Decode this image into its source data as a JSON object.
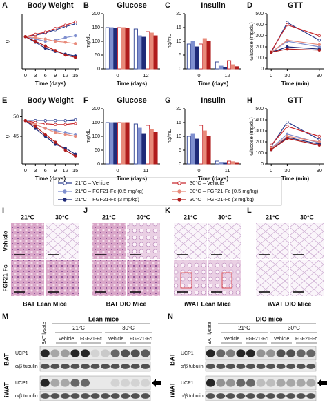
{
  "chart_data": [
    {
      "panel": "A",
      "type": "line",
      "title": "Body Weight",
      "x_label": "Time (days)",
      "y_label": "g",
      "x": [
        0,
        3,
        6,
        9,
        12,
        15
      ],
      "xlim": [
        -1,
        16
      ],
      "xticks": [
        0,
        3,
        6,
        9,
        12,
        15
      ],
      "ylim": [
        28,
        40
      ],
      "yticks": [],
      "series": [
        {
          "name": "21°C – Vehicle",
          "color": "#2b3d8f",
          "fill": "#ffffff",
          "values": [
            35,
            35.3,
            35.8,
            36.5,
            37.2,
            37.8
          ]
        },
        {
          "name": "21°C – FGF21-Fc (0.5 mg/kg)",
          "color": "#7f8fcf",
          "fill": "#7f8fcf",
          "values": [
            35,
            34.5,
            34,
            34.2,
            34.8,
            35.2
          ]
        },
        {
          "name": "21°C – FGF21-Fc (3 mg/kg)",
          "color": "#1f2a78",
          "fill": "#1f2a78",
          "values": [
            35,
            33.8,
            32.5,
            31.8,
            31.2,
            30.8
          ]
        },
        {
          "name": "30°C – Vehicle",
          "color": "#c8282d",
          "fill": "#ffffff",
          "values": [
            35,
            35.5,
            36,
            36.8,
            37.5,
            38.2
          ]
        },
        {
          "name": "30°C – FGF21-Fc (0.5 mg/kg)",
          "color": "#e88a7a",
          "fill": "#e88a7a",
          "values": [
            35,
            34.8,
            34.5,
            34,
            33.8,
            33.5
          ]
        },
        {
          "name": "30°C – FGF21-Fc (3 mg/kg)",
          "color": "#b01c1c",
          "fill": "#b01c1c",
          "values": [
            35,
            34,
            33,
            32,
            31,
            30.5
          ]
        }
      ]
    },
    {
      "panel": "B",
      "type": "bar",
      "title": "Glucose",
      "x_label": "Time (days)",
      "y_label": "mg/dL",
      "categories": [
        "0",
        "12"
      ],
      "ylim": [
        0,
        200
      ],
      "yticks": [
        0,
        50,
        100,
        150,
        200
      ],
      "series": [
        {
          "color": "#2b3d8f",
          "fill": "#ffffff",
          "values": [
            150,
            145
          ]
        },
        {
          "color": "#7f8fcf",
          "fill": "#7f8fcf",
          "values": [
            150,
            120
          ]
        },
        {
          "color": "#1f2a78",
          "fill": "#1f2a78",
          "values": [
            148,
            115
          ]
        },
        {
          "color": "#c8282d",
          "fill": "#ffffff",
          "values": [
            150,
            135
          ]
        },
        {
          "color": "#e88a7a",
          "fill": "#e88a7a",
          "values": [
            150,
            130
          ]
        },
        {
          "color": "#b01c1c",
          "fill": "#b01c1c",
          "values": [
            148,
            120
          ]
        }
      ]
    },
    {
      "panel": "C",
      "type": "bar",
      "title": "Insulin",
      "x_label": "Time (days)",
      "y_label": "ng/mL",
      "categories": [
        "0",
        "12"
      ],
      "ylim": [
        0,
        20
      ],
      "yticks": [
        0,
        5,
        10,
        15,
        20
      ],
      "series": [
        {
          "color": "#2b3d8f",
          "fill": "#ffffff",
          "values": [
            9,
            2.5
          ]
        },
        {
          "color": "#7f8fcf",
          "fill": "#7f8fcf",
          "values": [
            10,
            1
          ]
        },
        {
          "color": "#1f2a78",
          "fill": "#1f2a78",
          "values": [
            8,
            0.5
          ]
        },
        {
          "color": "#c8282d",
          "fill": "#ffffff",
          "values": [
            9,
            3
          ]
        },
        {
          "color": "#e88a7a",
          "fill": "#e88a7a",
          "values": [
            11,
            1.5
          ]
        },
        {
          "color": "#b01c1c",
          "fill": "#b01c1c",
          "values": [
            10,
            0.8
          ]
        }
      ]
    },
    {
      "panel": "D",
      "type": "line",
      "title": "GTT",
      "x_label": "Time (min)",
      "y_label": "Glucose (mg/dL)",
      "x": [
        0,
        30,
        90
      ],
      "xlim": [
        -8,
        98
      ],
      "xticks": [
        0,
        30,
        90
      ],
      "ylim": [
        0,
        500
      ],
      "yticks": [
        0,
        100,
        200,
        300,
        400,
        500
      ],
      "series": [
        {
          "color": "#2b3d8f",
          "fill": "#ffffff",
          "values": [
            150,
            420,
            260
          ]
        },
        {
          "color": "#7f8fcf",
          "fill": "#7f8fcf",
          "values": [
            150,
            250,
            200
          ]
        },
        {
          "color": "#1f2a78",
          "fill": "#1f2a78",
          "values": [
            150,
            200,
            180
          ]
        },
        {
          "color": "#c8282d",
          "fill": "#ffffff",
          "values": [
            160,
            400,
            300
          ]
        },
        {
          "color": "#e88a7a",
          "fill": "#e88a7a",
          "values": [
            150,
            260,
            220
          ]
        },
        {
          "color": "#b01c1c",
          "fill": "#b01c1c",
          "values": [
            150,
            180,
            170
          ]
        }
      ]
    },
    {
      "panel": "E",
      "type": "line",
      "title": "Body Weight",
      "x_label": "Time (days)",
      "y_label": "g",
      "x": [
        0,
        3,
        6,
        9,
        12,
        15
      ],
      "xlim": [
        -1,
        16
      ],
      "xticks": [
        0,
        3,
        6,
        9,
        12,
        15
      ],
      "ylim": [
        38,
        52
      ],
      "yticks": [
        45,
        50
      ],
      "series": [
        {
          "color": "#2b3d8f",
          "fill": "#ffffff",
          "values": [
            49,
            49,
            49,
            49,
            49,
            49.2
          ]
        },
        {
          "color": "#7f8fcf",
          "fill": "#7f8fcf",
          "values": [
            49,
            48,
            47,
            46.5,
            46,
            45.5
          ]
        },
        {
          "color": "#1f2a78",
          "fill": "#1f2a78",
          "values": [
            49,
            47,
            45,
            43,
            42,
            40.5
          ]
        },
        {
          "color": "#c8282d",
          "fill": "#ffffff",
          "values": [
            49,
            48.5,
            48.2,
            48,
            48,
            48.3
          ]
        },
        {
          "color": "#e88a7a",
          "fill": "#e88a7a",
          "values": [
            49,
            48,
            47,
            46,
            45.5,
            45
          ]
        },
        {
          "color": "#b01c1c",
          "fill": "#b01c1c",
          "values": [
            49,
            47.5,
            45.5,
            43.5,
            41.5,
            40
          ]
        }
      ]
    },
    {
      "panel": "F",
      "type": "bar",
      "title": "Glucose",
      "x_label": "Time (days)",
      "y_label": "mg/dL",
      "categories": [
        "0",
        "11"
      ],
      "ylim": [
        0,
        200
      ],
      "yticks": [
        0,
        50,
        100,
        150,
        200
      ],
      "series": [
        {
          "color": "#2b3d8f",
          "fill": "#ffffff",
          "values": [
            150,
            145
          ]
        },
        {
          "color": "#7f8fcf",
          "fill": "#7f8fcf",
          "values": [
            150,
            130
          ]
        },
        {
          "color": "#1f2a78",
          "fill": "#1f2a78",
          "values": [
            150,
            110
          ]
        },
        {
          "color": "#c8282d",
          "fill": "#ffffff",
          "values": [
            150,
            140
          ]
        },
        {
          "color": "#e88a7a",
          "fill": "#e88a7a",
          "values": [
            150,
            125
          ]
        },
        {
          "color": "#b01c1c",
          "fill": "#b01c1c",
          "values": [
            150,
            115
          ]
        }
      ]
    },
    {
      "panel": "G",
      "type": "bar",
      "title": "Insulin",
      "x_label": "Time (days)",
      "y_label": "ng/mL",
      "categories": [
        "0",
        "11"
      ],
      "ylim": [
        0,
        20
      ],
      "yticks": [
        0,
        5,
        10,
        15,
        20
      ],
      "series": [
        {
          "color": "#2b3d8f",
          "fill": "#ffffff",
          "values": [
            10,
            1
          ]
        },
        {
          "color": "#7f8fcf",
          "fill": "#7f8fcf",
          "values": [
            11,
            0.6
          ]
        },
        {
          "color": "#1f2a78",
          "fill": "#1f2a78",
          "values": [
            9,
            0.5
          ]
        },
        {
          "color": "#c8282d",
          "fill": "#ffffff",
          "values": [
            14,
            1
          ]
        },
        {
          "color": "#e88a7a",
          "fill": "#e88a7a",
          "values": [
            12,
            0.8
          ]
        },
        {
          "color": "#b01c1c",
          "fill": "#b01c1c",
          "values": [
            10,
            0.5
          ]
        }
      ]
    },
    {
      "panel": "H",
      "type": "line",
      "title": "GTT",
      "x_label": "Time (min)",
      "y_label": "Glucose (mg/dL)",
      "x": [
        0,
        30,
        90
      ],
      "xlim": [
        -8,
        98
      ],
      "xticks": [
        0,
        30,
        90
      ],
      "ylim": [
        0,
        500
      ],
      "yticks": [
        0,
        100,
        200,
        300,
        400,
        500
      ],
      "series": [
        {
          "color": "#2b3d8f",
          "fill": "#ffffff",
          "values": [
            160,
            380,
            220
          ]
        },
        {
          "color": "#7f8fcf",
          "fill": "#7f8fcf",
          "values": [
            140,
            270,
            190
          ]
        },
        {
          "color": "#1f2a78",
          "fill": "#1f2a78",
          "values": [
            130,
            240,
            180
          ]
        },
        {
          "color": "#c8282d",
          "fill": "#ffffff",
          "values": [
            170,
            340,
            250
          ]
        },
        {
          "color": "#e88a7a",
          "fill": "#e88a7a",
          "values": [
            140,
            250,
            200
          ]
        },
        {
          "color": "#b01c1c",
          "fill": "#b01c1c",
          "values": [
            130,
            230,
            170
          ]
        }
      ]
    }
  ],
  "histology": {
    "rows": [
      "Vehicle",
      "FGF21-Fc"
    ],
    "panels": [
      {
        "letter": "I",
        "caption": "BAT Lean Mice",
        "columns": [
          "21°C",
          "30°C"
        ]
      },
      {
        "letter": "J",
        "caption": "BAT DIO Mice",
        "columns": [
          "21°C",
          "30°C"
        ]
      },
      {
        "letter": "K",
        "caption": "iWAT Lean Mice",
        "columns": [
          "21°C",
          "30°C"
        ]
      },
      {
        "letter": "L",
        "caption": "iWAT DIO Mice",
        "columns": [
          "21°C",
          "30°C"
        ]
      }
    ]
  },
  "blots": {
    "tissues": [
      "BAT",
      "iWAT"
    ],
    "proteins": [
      "UCP1",
      "α/β tubulin"
    ],
    "panels": [
      {
        "letter": "M",
        "title": "Lean mice",
        "lysate": "BAT lysate",
        "temps": [
          "21°C",
          "30°C"
        ],
        "treatments": [
          "Vehicle",
          "FGF21-Fc",
          "Vehicle",
          "FGF21-Fc"
        ]
      },
      {
        "letter": "N",
        "title": "DIO mice",
        "lysate": "BAT lysate",
        "temps": [
          "21°C",
          "30°C"
        ],
        "treatments": [
          "Vehicle",
          "FGF21-Fc",
          "Vehicle",
          "FGF21-Fc"
        ]
      }
    ]
  }
}
